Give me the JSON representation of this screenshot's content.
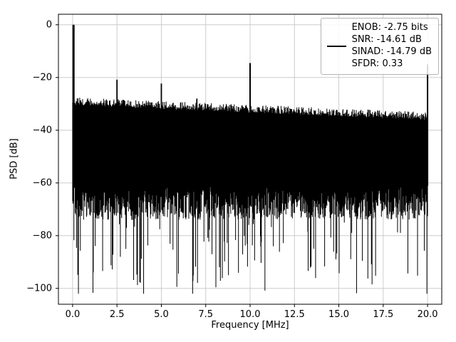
{
  "figure": {
    "background": "#ffffff"
  },
  "chart_data": {
    "type": "line",
    "title": "",
    "xlabel": "Frequency [MHz]",
    "ylabel": "PSD [dB]",
    "xlim": [
      -0.8,
      20.8
    ],
    "ylim": [
      -106,
      4
    ],
    "xticks": [
      0,
      2.5,
      5,
      7.5,
      10,
      12.5,
      15,
      17.5,
      20
    ],
    "xtick_labels": [
      "0.0",
      "2.5",
      "5.0",
      "7.5",
      "10.0",
      "12.5",
      "15.0",
      "17.5",
      "20.0"
    ],
    "yticks": [
      0,
      -20,
      -40,
      -60,
      -80,
      -100
    ],
    "ytick_labels": [
      "0",
      "−20",
      "−40",
      "−60",
      "−80",
      "−100"
    ],
    "grid": true,
    "grid_color": "#cccccc",
    "axis_color": "#000000",
    "line_color": "#000000",
    "peaks": [
      {
        "x": 0.05,
        "y": 0.0,
        "lw": 3
      },
      {
        "x": 2.5,
        "y": -20.8,
        "lw": 1.8
      },
      {
        "x": 5.0,
        "y": -22.3,
        "lw": 1.8
      },
      {
        "x": 7.0,
        "y": -28.0,
        "lw": 1.8
      },
      {
        "x": 10.0,
        "y": -14.5,
        "lw": 2
      },
      {
        "x": 20.0,
        "y": -15.0,
        "lw": 2
      }
    ],
    "noise": {
      "seed": 42,
      "columns": 1100,
      "x_start": 0,
      "x_end": 20,
      "top_start": -30.5,
      "top_slope": -0.28,
      "top_jitter": 3,
      "bottom_base": -61,
      "bottom_spread": 13,
      "deep_prob": 0.13,
      "deep_extra": 34,
      "floor_min": -102
    },
    "legend": {
      "position": "upper right",
      "swatch_color": "#000000",
      "entries": [
        "ENOB: -2.75 bits",
        "SNR: -14.61 dB",
        "SINAD: -14.79 dB",
        "SFDR: 0.33"
      ]
    }
  }
}
